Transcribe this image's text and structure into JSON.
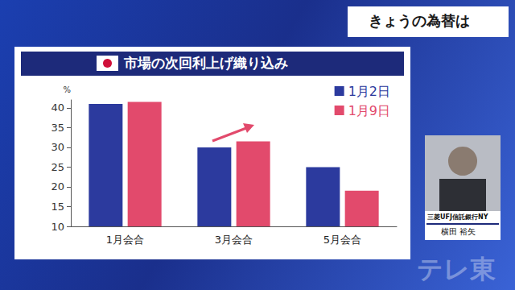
{
  "chart_data": {
    "type": "bar",
    "title": "市場の次回利上げ織り込み",
    "categories": [
      "1月会合",
      "3月会合",
      "5月会合"
    ],
    "series": [
      {
        "name": "1月2日",
        "color": "#2c3a9e",
        "values": [
          41,
          30,
          25
        ]
      },
      {
        "name": "1月9日",
        "color": "#e24a6c",
        "values": [
          41.5,
          31.5,
          19
        ]
      }
    ],
    "ylabel": "%",
    "ylim": [
      10,
      42
    ],
    "yticks": [
      10,
      15,
      20,
      25,
      30,
      35,
      40
    ],
    "grid": false,
    "legend": "upper right"
  },
  "header": {
    "title": "きょうの為替は"
  },
  "speaker": {
    "affiliation": "三菱UFJ信託銀行NY",
    "name": "横田 裕矢"
  },
  "watermark": "テレ東"
}
